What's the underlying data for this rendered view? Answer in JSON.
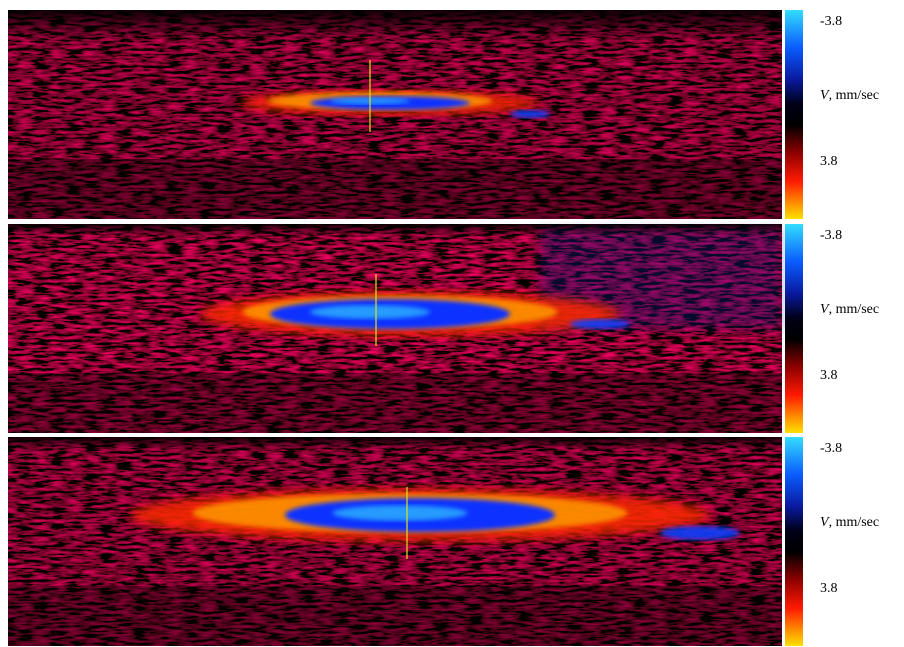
{
  "panels": [
    {
      "colorbar": {
        "top_label": "-3.8",
        "symbol": "V",
        "unit": ", mm/sec",
        "bottom_label": "3.8"
      }
    },
    {
      "colorbar": {
        "top_label": "-3.8",
        "symbol": "V",
        "unit": ", mm/sec",
        "bottom_label": "3.8"
      }
    },
    {
      "colorbar": {
        "top_label": "-3.8",
        "symbol": "V",
        "unit": ", mm/sec",
        "bottom_label": "3.8"
      }
    }
  ]
}
